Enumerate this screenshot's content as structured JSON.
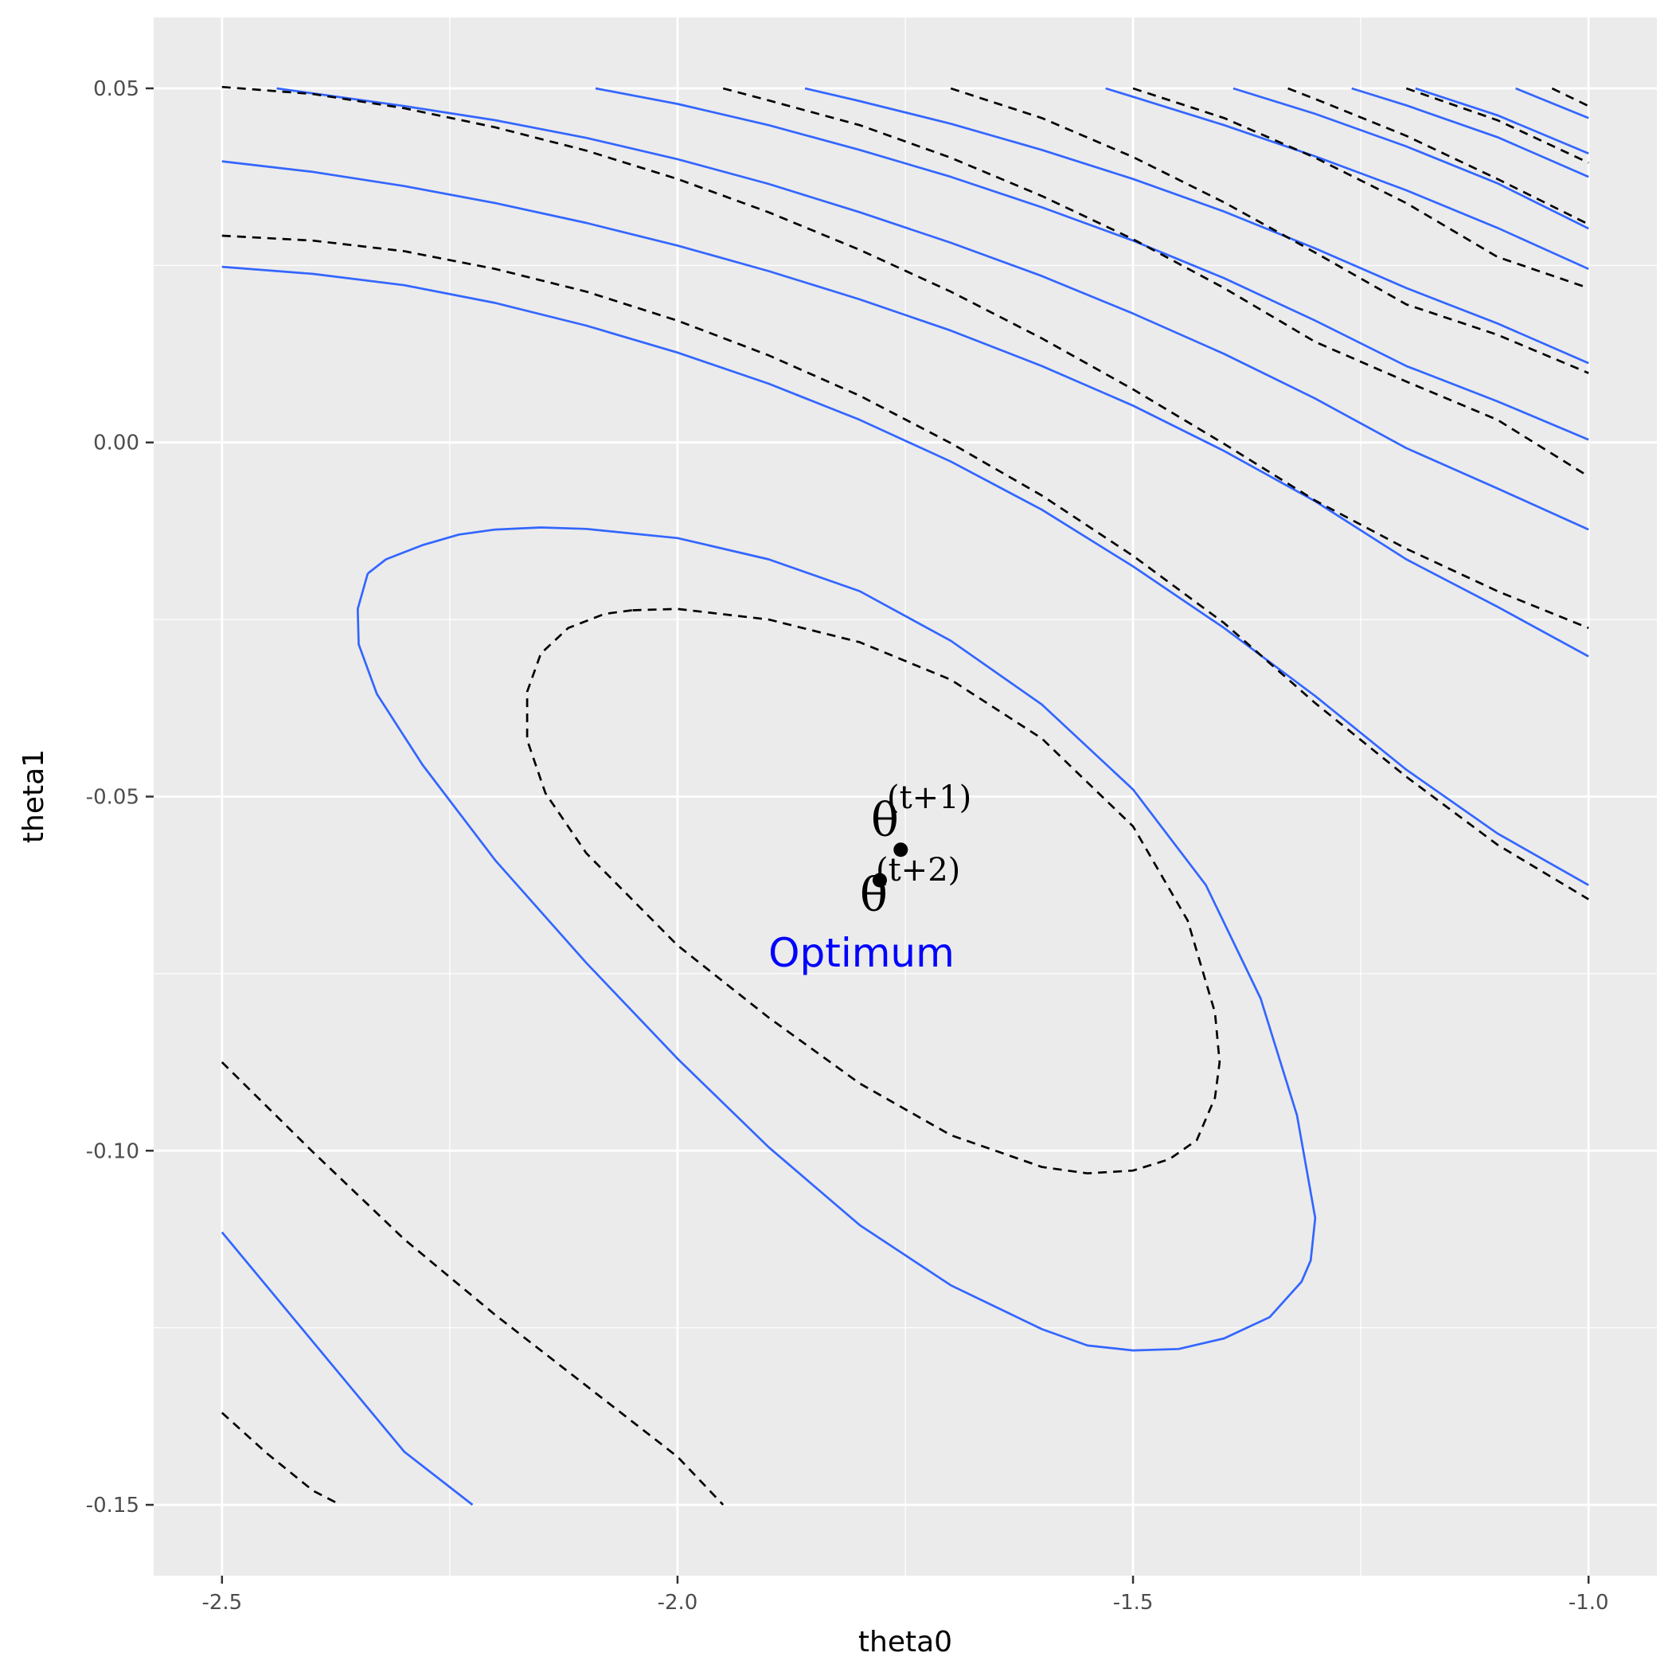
{
  "chart_data": {
    "type": "contour",
    "title": "",
    "xlabel": "theta0",
    "ylabel": "theta1",
    "xlim": [
      -2.575,
      -0.925
    ],
    "ylim": [
      -0.16,
      0.06
    ],
    "x_ticks": [
      -2.5,
      -2.0,
      -1.5,
      -1.0
    ],
    "x_tick_labels": [
      "-2.5",
      "-2.0",
      "-1.5",
      "-1.0"
    ],
    "y_ticks": [
      -0.15,
      -0.1,
      -0.05,
      0.0,
      0.05
    ],
    "y_tick_labels": [
      "-0.15",
      "-0.10",
      "-0.05",
      "0.00",
      "0.05"
    ],
    "grid": true,
    "colors": {
      "panel": "#ebebeb",
      "grid": "#ffffff",
      "solid_contour": "#3366ff",
      "dashed_contour": "#000000",
      "optimum_text": "#0000ff",
      "point": "#000000",
      "tick_text": "#4d4d4d"
    },
    "series": [
      {
        "name": "solid_contours",
        "style": "solid",
        "lines": [
          [
            [
              -2.34,
              -0.0185
            ],
            [
              -2.32,
              -0.0165
            ],
            [
              -2.28,
              -0.0145
            ],
            [
              -2.24,
              -0.013
            ],
            [
              -2.2,
              -0.0123
            ],
            [
              -2.15,
              -0.012
            ],
            [
              -2.1,
              -0.0122
            ],
            [
              -2.0,
              -0.0135
            ],
            [
              -1.9,
              -0.0165
            ],
            [
              -1.8,
              -0.021
            ],
            [
              -1.7,
              -0.028
            ],
            [
              -1.6,
              -0.037
            ],
            [
              -1.5,
              -0.049
            ],
            [
              -1.42,
              -0.0625
            ],
            [
              -1.36,
              -0.0785
            ],
            [
              -1.32,
              -0.095
            ],
            [
              -1.3,
              -0.1095
            ],
            [
              -1.305,
              -0.1155
            ],
            [
              -1.315,
              -0.1185
            ],
            [
              -1.35,
              -0.1235
            ],
            [
              -1.4,
              -0.1265
            ],
            [
              -1.45,
              -0.128
            ],
            [
              -1.5,
              -0.1282
            ],
            [
              -1.55,
              -0.1275
            ],
            [
              -1.6,
              -0.1252
            ],
            [
              -1.7,
              -0.119
            ],
            [
              -1.8,
              -0.1105
            ],
            [
              -1.9,
              -0.0995
            ],
            [
              -2.0,
              -0.087
            ],
            [
              -2.1,
              -0.0735
            ],
            [
              -2.2,
              -0.059
            ],
            [
              -2.28,
              -0.0455
            ],
            [
              -2.33,
              -0.0355
            ],
            [
              -2.35,
              -0.0285
            ],
            [
              -2.351,
              -0.0235
            ],
            [
              -2.34,
              -0.0185
            ]
          ],
          [
            [
              -2.5,
              -0.1115
            ],
            [
              -2.4,
              -0.127
            ],
            [
              -2.3,
              -0.1425
            ],
            [
              -2.225,
              -0.15
            ]
          ],
          [
            [
              -2.5,
              0.0248
            ],
            [
              -2.4,
              0.0238
            ],
            [
              -2.3,
              0.0222
            ],
            [
              -2.2,
              0.0197
            ],
            [
              -2.1,
              0.0165
            ],
            [
              -2.0,
              0.0127
            ],
            [
              -1.9,
              0.0083
            ],
            [
              -1.8,
              0.0032
            ],
            [
              -1.7,
              -0.0027
            ],
            [
              -1.6,
              -0.0095
            ],
            [
              -1.5,
              -0.0175
            ],
            [
              -1.4,
              -0.0262
            ],
            [
              -1.3,
              -0.0358
            ],
            [
              -1.2,
              -0.0462
            ],
            [
              -1.1,
              -0.0552
            ],
            [
              -1.0,
              -0.0625
            ]
          ],
          [
            [
              -2.5,
              0.0397
            ],
            [
              -2.4,
              0.0382
            ],
            [
              -2.3,
              0.0362
            ],
            [
              -2.2,
              0.0338
            ],
            [
              -2.1,
              0.031
            ],
            [
              -2.0,
              0.0278
            ],
            [
              -1.9,
              0.0242
            ],
            [
              -1.8,
              0.0202
            ],
            [
              -1.7,
              0.0158
            ],
            [
              -1.6,
              0.0108
            ],
            [
              -1.5,
              0.0052
            ],
            [
              -1.4,
              -0.0012
            ],
            [
              -1.3,
              -0.0083
            ],
            [
              -1.2,
              -0.0165
            ],
            [
              -1.1,
              -0.0232
            ],
            [
              -1.0,
              -0.0302
            ]
          ],
          [
            [
              -2.44,
              0.05
            ],
            [
              -2.3,
              0.0475
            ],
            [
              -2.2,
              0.0455
            ],
            [
              -2.1,
              0.043
            ],
            [
              -2.0,
              0.04
            ],
            [
              -1.9,
              0.0365
            ],
            [
              -1.8,
              0.0325
            ],
            [
              -1.7,
              0.0282
            ],
            [
              -1.6,
              0.0235
            ],
            [
              -1.5,
              0.0182
            ],
            [
              -1.4,
              0.0125
            ],
            [
              -1.3,
              0.0062
            ],
            [
              -1.2,
              -0.0008
            ],
            [
              -1.1,
              -0.0065
            ],
            [
              -1.0,
              -0.0123
            ]
          ],
          [
            [
              -2.09,
              0.05
            ],
            [
              -2.0,
              0.0478
            ],
            [
              -1.9,
              0.0448
            ],
            [
              -1.8,
              0.0413
            ],
            [
              -1.7,
              0.0375
            ],
            [
              -1.6,
              0.0332
            ],
            [
              -1.5,
              0.0285
            ],
            [
              -1.4,
              0.0232
            ],
            [
              -1.3,
              0.0172
            ],
            [
              -1.2,
              0.0108
            ],
            [
              -1.1,
              0.0058
            ],
            [
              -1.0,
              0.0004
            ]
          ],
          [
            [
              -1.86,
              0.05
            ],
            [
              -1.8,
              0.0482
            ],
            [
              -1.7,
              0.045
            ],
            [
              -1.6,
              0.0413
            ],
            [
              -1.5,
              0.0372
            ],
            [
              -1.4,
              0.0326
            ],
            [
              -1.3,
              0.0274
            ],
            [
              -1.2,
              0.0218
            ],
            [
              -1.1,
              0.0168
            ],
            [
              -1.0,
              0.0112
            ]
          ],
          [
            [
              -1.53,
              0.05
            ],
            [
              -1.5,
              0.0488
            ],
            [
              -1.4,
              0.0448
            ],
            [
              -1.3,
              0.0404
            ],
            [
              -1.2,
              0.0356
            ],
            [
              -1.1,
              0.0303
            ],
            [
              -1.0,
              0.0245
            ]
          ],
          [
            [
              -1.39,
              0.05
            ],
            [
              -1.3,
              0.0464
            ],
            [
              -1.2,
              0.0418
            ],
            [
              -1.1,
              0.0366
            ],
            [
              -1.0,
              0.0302
            ]
          ],
          [
            [
              -1.26,
              0.05
            ],
            [
              -1.2,
              0.0476
            ],
            [
              -1.1,
              0.0431
            ],
            [
              -1.0,
              0.0375
            ]
          ],
          [
            [
              -1.19,
              0.05
            ],
            [
              -1.1,
              0.0462
            ],
            [
              -1.0,
              0.0408
            ]
          ],
          [
            [
              -1.08,
              0.05
            ],
            [
              -1.0,
              0.0458
            ]
          ]
        ]
      },
      {
        "name": "dashed_contours",
        "style": "dashed",
        "lines": [
          [
            [
              -2.05,
              -0.0237
            ],
            [
              -2.08,
              -0.0242
            ],
            [
              -2.12,
              -0.0262
            ],
            [
              -2.15,
              -0.0298
            ],
            [
              -2.165,
              -0.0352
            ],
            [
              -2.165,
              -0.042
            ],
            [
              -2.145,
              -0.0495
            ],
            [
              -2.1,
              -0.058
            ],
            [
              -2.0,
              -0.071
            ],
            [
              -1.9,
              -0.0812
            ],
            [
              -1.8,
              -0.0905
            ],
            [
              -1.7,
              -0.0978
            ],
            [
              -1.6,
              -0.1023
            ],
            [
              -1.55,
              -0.1032
            ],
            [
              -1.5,
              -0.1028
            ],
            [
              -1.46,
              -0.1012
            ],
            [
              -1.43,
              -0.0985
            ],
            [
              -1.41,
              -0.0925
            ],
            [
              -1.405,
              -0.0875
            ],
            [
              -1.41,
              -0.0805
            ],
            [
              -1.44,
              -0.0675
            ],
            [
              -1.5,
              -0.0542
            ],
            [
              -1.6,
              -0.0418
            ],
            [
              -1.7,
              -0.0335
            ],
            [
              -1.8,
              -0.0282
            ],
            [
              -1.9,
              -0.025
            ],
            [
              -2.0,
              -0.0235
            ],
            [
              -2.05,
              -0.0237
            ]
          ],
          [
            [
              -2.5,
              -0.0875
            ],
            [
              -2.4,
              -0.1002
            ],
            [
              -2.3,
              -0.1125
            ],
            [
              -2.2,
              -0.1232
            ],
            [
              -2.1,
              -0.1332
            ],
            [
              -2.0,
              -0.1432
            ],
            [
              -1.95,
              -0.15
            ]
          ],
          [
            [
              -2.5,
              -0.137
            ],
            [
              -2.45,
              -0.1428
            ],
            [
              -2.4,
              -0.148
            ],
            [
              -2.37,
              -0.15
            ]
          ],
          [
            [
              -2.5,
              0.0292
            ],
            [
              -2.4,
              0.0285
            ],
            [
              -2.3,
              0.027
            ],
            [
              -2.2,
              0.0245
            ],
            [
              -2.1,
              0.0213
            ],
            [
              -2.0,
              0.0172
            ],
            [
              -1.9,
              0.0123
            ],
            [
              -1.8,
              0.0066
            ],
            [
              -1.7,
              -0.0001
            ],
            [
              -1.6,
              -0.0075
            ],
            [
              -1.5,
              -0.016
            ],
            [
              -1.4,
              -0.0255
            ],
            [
              -1.3,
              -0.0368
            ],
            [
              -1.2,
              -0.0472
            ],
            [
              -1.1,
              -0.0568
            ],
            [
              -1.0,
              -0.0645
            ]
          ],
          [
            [
              -2.5,
              0.0502
            ],
            [
              -2.4,
              0.0492
            ],
            [
              -2.3,
              0.0472
            ],
            [
              -2.2,
              0.0445
            ],
            [
              -2.1,
              0.0412
            ],
            [
              -2.0,
              0.0372
            ],
            [
              -1.9,
              0.0325
            ],
            [
              -1.8,
              0.0272
            ],
            [
              -1.7,
              0.0213
            ],
            [
              -1.6,
              0.0147
            ],
            [
              -1.5,
              0.0075
            ],
            [
              -1.4,
              -0.0002
            ],
            [
              -1.3,
              -0.0082
            ],
            [
              -1.2,
              -0.015
            ],
            [
              -1.1,
              -0.021
            ],
            [
              -1.0,
              -0.0262
            ]
          ],
          [
            [
              -1.95,
              0.05
            ],
            [
              -1.9,
              0.0483
            ],
            [
              -1.8,
              0.0448
            ],
            [
              -1.7,
              0.0402
            ],
            [
              -1.6,
              0.0348
            ],
            [
              -1.5,
              0.0287
            ],
            [
              -1.4,
              0.0218
            ],
            [
              -1.3,
              0.0142
            ],
            [
              -1.2,
              0.0086
            ],
            [
              -1.1,
              0.0032
            ],
            [
              -1.0,
              -0.0048
            ]
          ],
          [
            [
              -1.7,
              0.05
            ],
            [
              -1.6,
              0.0458
            ],
            [
              -1.5,
              0.0403
            ],
            [
              -1.4,
              0.0339
            ],
            [
              -1.3,
              0.0268
            ],
            [
              -1.2,
              0.0195
            ],
            [
              -1.1,
              0.0152
            ],
            [
              -1.0,
              0.0098
            ]
          ],
          [
            [
              -1.5,
              0.05
            ],
            [
              -1.4,
              0.0458
            ],
            [
              -1.3,
              0.0402
            ],
            [
              -1.2,
              0.0338
            ],
            [
              -1.1,
              0.0262
            ],
            [
              -1.0,
              0.0218
            ]
          ],
          [
            [
              -1.33,
              0.05
            ],
            [
              -1.3,
              0.0485
            ],
            [
              -1.2,
              0.0433
            ],
            [
              -1.1,
              0.0372
            ],
            [
              -1.0,
              0.0308
            ]
          ],
          [
            [
              -1.2,
              0.05
            ],
            [
              -1.1,
              0.0455
            ],
            [
              -1.0,
              0.0395
            ]
          ],
          [
            [
              -1.04,
              0.05
            ],
            [
              -1.0,
              0.0475
            ]
          ]
        ]
      }
    ],
    "points": [
      {
        "name": "theta-t+1",
        "x": -1.755,
        "y": -0.0575
      },
      {
        "name": "theta-t+2",
        "x": -1.778,
        "y": -0.0618
      }
    ],
    "annotations": {
      "theta_symbol": "θ",
      "theta_t1_superscript": "(t+1)",
      "theta_t2_superscript": "(t+2)",
      "optimum": "Optimum"
    }
  }
}
